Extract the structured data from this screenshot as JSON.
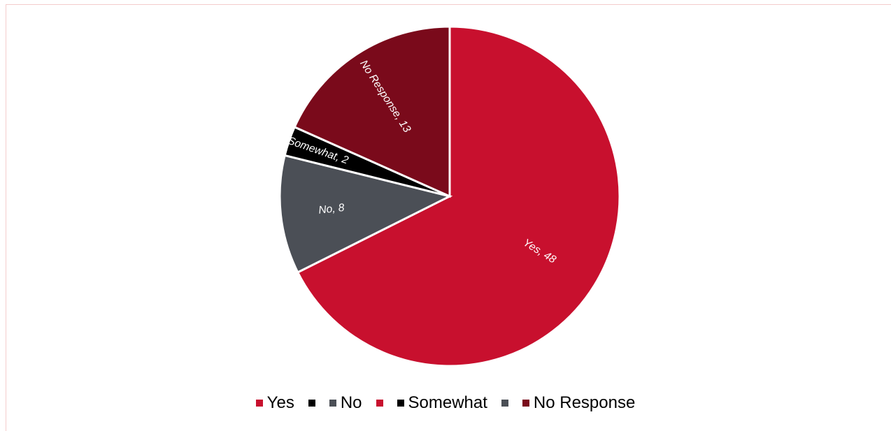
{
  "chart_data": {
    "type": "pie",
    "title": "",
    "slices": [
      {
        "name": "Yes",
        "value": 48,
        "label": "Yes, 48",
        "color": "#c8102e"
      },
      {
        "name": "No",
        "value": 8,
        "label": "No, 8",
        "color": "#4b4f56"
      },
      {
        "name": "Somewhat",
        "value": 2,
        "label": "Somewhat, 2",
        "color": "#000000"
      },
      {
        "name": "No Response",
        "value": 13,
        "label": "No Response, 13",
        "color": "#7a0a1b"
      }
    ],
    "legend": {
      "placement": "bottom",
      "entries": [
        {
          "label": "Yes",
          "color": "#c8102e"
        },
        {
          "label": "",
          "color": "#000000"
        },
        {
          "label": "No",
          "color": "#4b4f56"
        },
        {
          "label": "",
          "color": "#c8102e"
        },
        {
          "label": "Somewhat",
          "color": "#000000"
        },
        {
          "label": "",
          "color": "#4b4f56"
        },
        {
          "label": "No Response",
          "color": "#7a0a1b"
        }
      ]
    }
  }
}
